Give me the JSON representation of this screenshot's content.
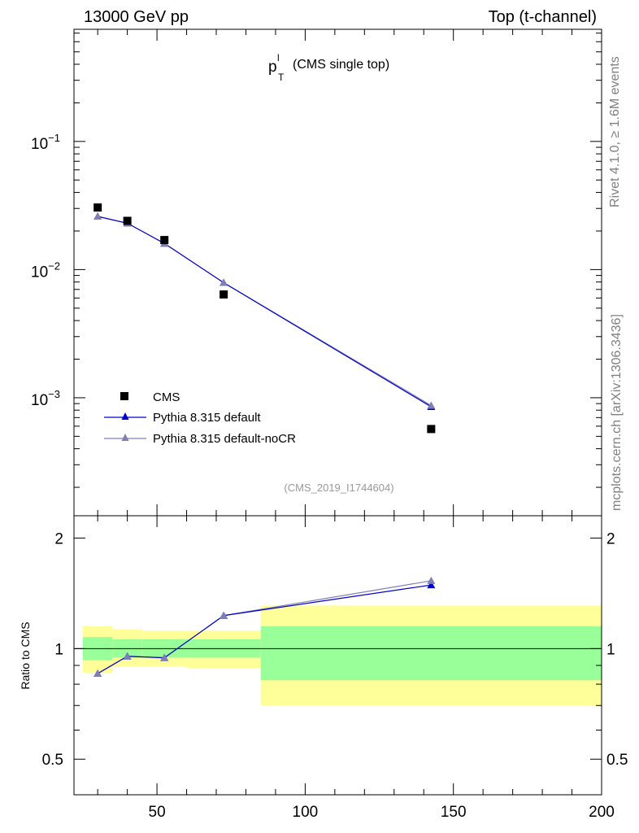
{
  "header": {
    "left": "13000 GeV pp",
    "right": "Top (t-channel)"
  },
  "side_labels": {
    "rivet": "Rivet 4.1.0, ≥ 1.6M events",
    "mcplots": "mcplots.cern.ch [arXiv:1306.3436]"
  },
  "chart_data": {
    "type": "line",
    "title_main": "p",
    "title_sup": "l",
    "title_sub": "T",
    "title_rest": "(CMS single top)",
    "analysis": "(CMS_2019_I1744604)",
    "xlim": [
      22,
      200
    ],
    "ylim_top": [
      0.00012,
      0.75
    ],
    "ylim_ratio": [
      0.4,
      2.3
    ],
    "x_ticks": [
      "50",
      "100",
      "150",
      "200"
    ],
    "x_tick_values": [
      50,
      100,
      150,
      200
    ],
    "y_ticks_top": [
      {
        "value": 0.1,
        "base": "10",
        "exp": "−1"
      },
      {
        "value": 0.01,
        "base": "10",
        "exp": "−2"
      },
      {
        "value": 0.001,
        "base": "10",
        "exp": "−3"
      }
    ],
    "y_ticks_ratio": [
      {
        "value": 2,
        "label": "2"
      },
      {
        "value": 1,
        "label": "1"
      },
      {
        "value": 0.5,
        "label": "0.5"
      }
    ],
    "ratio_ylabel": "Ratio to CMS",
    "legend": {
      "placement": "bottom-left",
      "entries": [
        "CMS",
        "Pythia 8.315 default",
        "Pythia 8.315 default-noCR"
      ]
    },
    "bins": [
      {
        "lo": 25,
        "hi": 35
      },
      {
        "lo": 35,
        "hi": 45
      },
      {
        "lo": 45,
        "hi": 60
      },
      {
        "lo": 60,
        "hi": 85
      },
      {
        "lo": 85,
        "hi": 200
      }
    ],
    "series": [
      {
        "name": "CMS",
        "color": "#000000",
        "x": [
          30,
          40,
          52.5,
          72.5,
          142.5
        ],
        "values": [
          0.0305,
          0.024,
          0.017,
          0.0064,
          0.00057
        ]
      },
      {
        "name": "Pythia 8.315 default",
        "color": "#0000cc",
        "x": [
          30,
          40,
          52.5,
          72.5,
          142.5
        ],
        "values": [
          0.026,
          0.023,
          0.016,
          0.0079,
          0.00085
        ]
      },
      {
        "name": "Pythia 8.315 default-noCR",
        "color": "#7f7fb3",
        "x": [
          30,
          40,
          52.5,
          72.5,
          142.5
        ],
        "values": [
          0.026,
          0.023,
          0.016,
          0.0079,
          0.00087
        ]
      }
    ],
    "ratio": {
      "default": [
        0.855,
        0.953,
        0.944,
        1.23,
        1.49
      ],
      "noCR": [
        0.855,
        0.953,
        0.944,
        1.23,
        1.53
      ],
      "band_inner": [
        [
          0.93,
          1.075
        ],
        [
          0.945,
          1.06
        ],
        [
          0.945,
          1.06
        ],
        [
          0.945,
          1.06
        ],
        [
          0.82,
          1.15
        ]
      ],
      "band_outer": [
        [
          0.86,
          1.15
        ],
        [
          0.895,
          1.13
        ],
        [
          0.895,
          1.12
        ],
        [
          0.885,
          1.12
        ],
        [
          0.7,
          1.31
        ]
      ],
      "band_inner_color": "#99ff99",
      "band_outer_color": "#ffff99"
    }
  }
}
